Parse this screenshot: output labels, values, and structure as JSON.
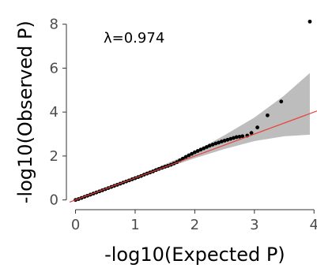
{
  "chart_data": {
    "type": "scatter",
    "title": "",
    "xlabel": "-log10(Expected P)",
    "ylabel": "-log10(Observed P)",
    "annotation": "λ=0.974",
    "xlim": [
      -0.1,
      4.05
    ],
    "ylim": [
      -0.3,
      8.6
    ],
    "x_ticks": [
      0,
      1,
      2,
      3,
      4
    ],
    "y_ticks": [
      0,
      2,
      4,
      6,
      8
    ],
    "x_tick_labels": [
      "0",
      "1",
      "2",
      "3",
      "4"
    ],
    "y_tick_labels": [
      "0",
      "2",
      "4",
      "6",
      "8"
    ],
    "grid": false,
    "colors": {
      "points": "#000000",
      "identity_line": "#e8423a",
      "confidence_band": "#bdbdbd"
    },
    "series": [
      {
        "x": [
          0.0,
          0.05,
          0.1,
          0.15,
          0.2,
          0.25,
          0.3,
          0.35,
          0.4,
          0.45,
          0.5,
          0.55,
          0.6,
          0.65,
          0.7,
          0.75,
          0.8,
          0.85,
          0.9,
          0.95,
          1.0,
          1.05,
          1.1,
          1.15,
          1.2,
          1.25,
          1.3,
          1.35,
          1.4,
          1.45,
          1.5,
          1.55,
          1.6,
          1.65,
          1.7,
          1.75,
          1.8,
          1.85,
          1.9,
          1.95,
          2.0,
          2.05,
          2.1,
          2.15,
          2.2,
          2.25,
          2.3,
          2.35,
          2.4,
          2.45,
          2.5,
          2.55,
          2.6,
          2.65,
          2.7,
          2.75,
          2.8,
          2.88,
          2.95,
          3.05,
          3.22,
          3.45,
          3.93
        ],
        "y": [
          0.0,
          0.04,
          0.09,
          0.14,
          0.19,
          0.24,
          0.29,
          0.34,
          0.39,
          0.44,
          0.49,
          0.54,
          0.59,
          0.64,
          0.69,
          0.74,
          0.79,
          0.84,
          0.89,
          0.94,
          0.99,
          1.04,
          1.09,
          1.15,
          1.2,
          1.25,
          1.3,
          1.36,
          1.41,
          1.46,
          1.51,
          1.55,
          1.6,
          1.66,
          1.72,
          1.8,
          1.88,
          1.96,
          2.03,
          2.1,
          2.17,
          2.23,
          2.29,
          2.35,
          2.41,
          2.47,
          2.52,
          2.57,
          2.61,
          2.66,
          2.7,
          2.74,
          2.78,
          2.82,
          2.86,
          2.88,
          2.9,
          2.93,
          3.05,
          3.3,
          3.85,
          4.48,
          8.12
        ]
      }
    ],
    "confidence_band": {
      "x": [
        0,
        1,
        2,
        2.5,
        3.0,
        3.5,
        3.93
      ],
      "upper": [
        0.0,
        1.05,
        2.2,
        2.95,
        3.75,
        4.75,
        5.78
      ],
      "lower": [
        0.0,
        0.98,
        1.9,
        2.32,
        2.68,
        2.9,
        2.97
      ]
    }
  }
}
